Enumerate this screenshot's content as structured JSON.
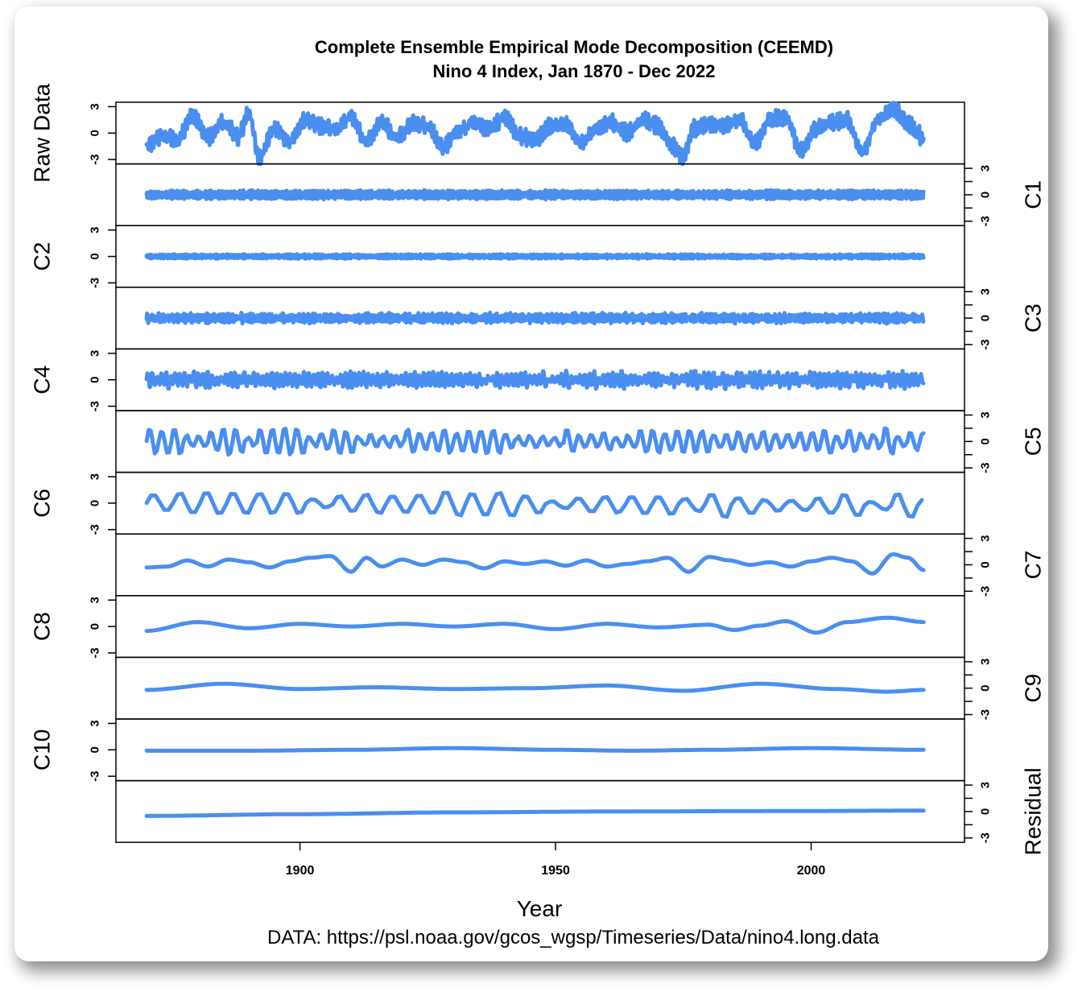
{
  "colors": {
    "series": "#4a8ef0",
    "frame": "#000000",
    "background": "#ffffff"
  },
  "chart_data": {
    "type": "line",
    "title": "Complete Ensemble Empirical Mode Decomposition (CEEMD)",
    "subtitle": "Nino 4 Index, Jan 1870 - Dec 2022",
    "xlabel": "Year",
    "source_note": "DATA: https://psl.noaa.gov/gcos_wgsp/Timeseries/Data/nino4.long.data",
    "xlim": [
      1864,
      2030
    ],
    "x_ticks": [
      1900,
      1950,
      2000
    ],
    "x_tick_labels": [
      "1900",
      "1950",
      "2000"
    ],
    "panel_ylim": [
      -3.5,
      3.5
    ],
    "y_ticks": [
      3,
      0,
      -3
    ],
    "y_tick_labels": [
      "3",
      "0",
      "-3"
    ],
    "grid": false,
    "panels": [
      {
        "name": "Raw Data",
        "axis_side": "left",
        "x": [
          1870,
          1873,
          1876,
          1879,
          1882,
          1885,
          1888,
          1890,
          1892,
          1895,
          1898,
          1901,
          1904,
          1907,
          1910,
          1913,
          1916,
          1919,
          1922,
          1925,
          1928,
          1931,
          1934,
          1937,
          1940,
          1943,
          1946,
          1949,
          1952,
          1955,
          1958,
          1961,
          1964,
          1967,
          1970,
          1973,
          1975,
          1977,
          1980,
          1983,
          1986,
          1989,
          1992,
          1995,
          1998,
          2001,
          2004,
          2007,
          2010,
          2013,
          2016,
          2019,
          2022
        ],
        "y": [
          -1.5,
          -0.3,
          -0.8,
          2.0,
          -0.5,
          1.2,
          -0.3,
          2.2,
          -2.8,
          0.5,
          -1.0,
          1.5,
          0.8,
          0.5,
          1.8,
          -1.0,
          1.2,
          -0.5,
          1.0,
          0.8,
          -1.5,
          0.2,
          1.2,
          0.5,
          1.8,
          -0.3,
          -0.8,
          0.8,
          1.0,
          -1.2,
          0.5,
          1.2,
          0.0,
          1.5,
          0.8,
          -1.5,
          -2.8,
          0.5,
          1.0,
          0.8,
          1.5,
          -1.2,
          1.5,
          1.8,
          -2.0,
          0.5,
          1.2,
          1.5,
          -2.2,
          1.5,
          2.8,
          1.0,
          -0.5
        ]
      },
      {
        "name": "C1",
        "axis_side": "right",
        "x": [
          1870,
          2022
        ],
        "y": [
          0.0,
          0.0
        ]
      },
      {
        "name": "C2",
        "axis_side": "left",
        "x": [
          1870,
          2022
        ],
        "y": [
          0.0,
          0.0
        ]
      },
      {
        "name": "C3",
        "axis_side": "right",
        "x": [
          1870,
          2022
        ],
        "y": [
          0.0,
          0.0
        ]
      },
      {
        "name": "C4",
        "axis_side": "left",
        "x": [
          1870,
          2022
        ],
        "y": [
          0.0,
          0.0
        ]
      },
      {
        "name": "C5",
        "axis_side": "right",
        "x": [
          1870,
          2022
        ],
        "y": [
          0.0,
          0.0
        ]
      },
      {
        "name": "C6",
        "axis_side": "left",
        "x": [
          1870,
          2022
        ],
        "y": [
          0.0,
          -0.3
        ]
      },
      {
        "name": "C7",
        "axis_side": "right",
        "x": [
          1870,
          1874,
          1878,
          1882,
          1886,
          1890,
          1894,
          1898,
          1902,
          1906,
          1910,
          1913,
          1916,
          1920,
          1924,
          1928,
          1932,
          1936,
          1940,
          1944,
          1948,
          1952,
          1956,
          1960,
          1964,
          1968,
          1972,
          1976,
          1980,
          1984,
          1988,
          1992,
          1996,
          2000,
          2004,
          2008,
          2012,
          2016,
          2019,
          2022
        ],
        "y": [
          -0.3,
          -0.2,
          0.5,
          -0.2,
          0.6,
          0.3,
          -0.3,
          0.4,
          0.8,
          1.0,
          -0.8,
          0.8,
          -0.2,
          0.6,
          0.0,
          0.6,
          0.3,
          -0.4,
          0.4,
          0.1,
          0.4,
          -0.1,
          0.5,
          -0.2,
          0.1,
          0.4,
          0.8,
          -0.8,
          0.9,
          0.5,
          0.0,
          0.3,
          -0.2,
          0.4,
          0.8,
          0.4,
          -1.0,
          1.2,
          0.8,
          -0.6
        ]
      },
      {
        "name": "C8",
        "axis_side": "left",
        "x": [
          1870,
          1880,
          1890,
          1900,
          1910,
          1920,
          1930,
          1940,
          1950,
          1960,
          1970,
          1980,
          1985,
          1990,
          1995,
          2001,
          2007,
          2015,
          2022
        ],
        "y": [
          -0.5,
          0.5,
          -0.2,
          0.3,
          0.0,
          0.3,
          0.0,
          0.3,
          -0.3,
          0.3,
          -0.1,
          0.2,
          -0.4,
          0.1,
          0.6,
          -0.7,
          0.5,
          1.0,
          0.5
        ]
      },
      {
        "name": "C9",
        "axis_side": "right",
        "x": [
          1870,
          1885,
          1900,
          1915,
          1930,
          1945,
          1960,
          1975,
          1990,
          2005,
          2015,
          2022
        ],
        "y": [
          -0.2,
          0.5,
          -0.1,
          0.1,
          -0.1,
          0.0,
          0.3,
          -0.3,
          0.5,
          -0.1,
          -0.4,
          -0.2
        ]
      },
      {
        "name": "C10",
        "axis_side": "left",
        "x": [
          1870,
          1890,
          1910,
          1930,
          1950,
          1965,
          1980,
          2000,
          2022
        ],
        "y": [
          -0.1,
          -0.1,
          0.0,
          0.2,
          0.0,
          -0.1,
          0.0,
          0.2,
          0.0
        ]
      },
      {
        "name": "Residual",
        "axis_side": "right",
        "x": [
          1870,
          1900,
          1930,
          1960,
          1990,
          2022
        ],
        "y": [
          -0.5,
          -0.3,
          -0.1,
          0.0,
          0.05,
          0.1
        ]
      }
    ]
  }
}
